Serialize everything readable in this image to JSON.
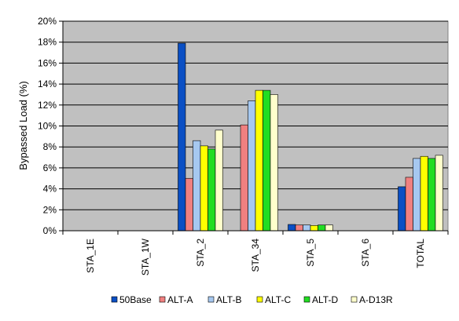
{
  "chart_data": {
    "type": "bar",
    "title": "",
    "xlabel": "",
    "ylabel": "Bypassed Load (%)",
    "ylim": [
      0,
      20
    ],
    "yticks": [
      "0%",
      "2%",
      "4%",
      "6%",
      "8%",
      "10%",
      "12%",
      "14%",
      "16%",
      "18%",
      "20%"
    ],
    "ytick_values": [
      0,
      2,
      4,
      6,
      8,
      10,
      12,
      14,
      16,
      18,
      20
    ],
    "grid": true,
    "legend_position": "bottom",
    "plot_background": "#c0c0c0",
    "categories": [
      "STA_1E",
      "STA_1W",
      "STA_2",
      "STA_34",
      "STA_5",
      "STA_6",
      "TOTAL"
    ],
    "series": [
      {
        "name": "50Base",
        "color": "#0a4fc4",
        "values": [
          0,
          0,
          17.9,
          0,
          0.6,
          0,
          4.2
        ]
      },
      {
        "name": "ALT-A",
        "color": "#f08080",
        "values": [
          0,
          0,
          5.0,
          10.1,
          0.55,
          0,
          5.1
        ]
      },
      {
        "name": "ALT-B",
        "color": "#a6c8f0",
        "values": [
          0,
          0,
          8.6,
          12.4,
          0.55,
          0,
          6.9
        ]
      },
      {
        "name": "ALT-C",
        "color": "#ffff00",
        "values": [
          0,
          0,
          8.1,
          13.4,
          0.5,
          0,
          7.1
        ]
      },
      {
        "name": "ALT-D",
        "color": "#22dd22",
        "values": [
          0,
          0,
          7.8,
          13.4,
          0.55,
          0,
          6.9
        ]
      },
      {
        "name": "A-D13R",
        "color": "#ffffcc",
        "values": [
          0,
          0,
          9.6,
          13.0,
          0.55,
          0,
          7.2
        ]
      }
    ]
  }
}
